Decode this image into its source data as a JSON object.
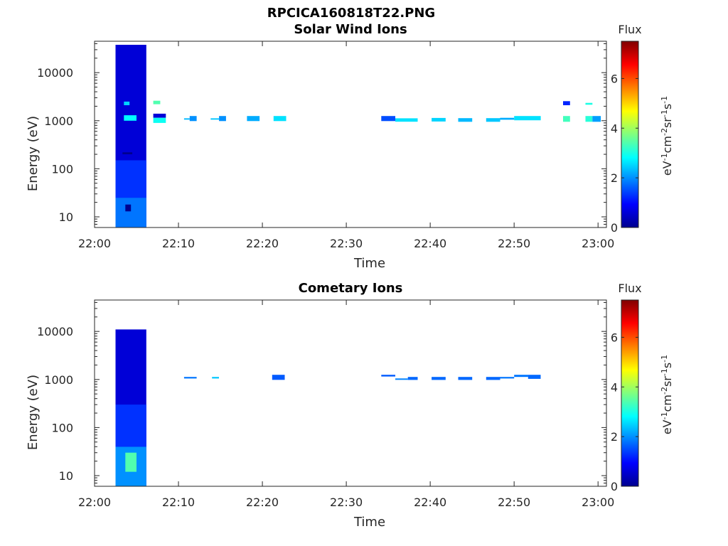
{
  "figure_title": "RPCICA160818T22.PNG",
  "colors": {
    "axis": "#262626",
    "background": "#ffffff",
    "colormap": "jet"
  },
  "chart_data": [
    {
      "type": "heatmap",
      "title": "Solar Wind Ions",
      "xlabel": "Time",
      "ylabel": "Energy (eV)",
      "yscale": "log",
      "xlim": [
        "22:00",
        "23:01"
      ],
      "ylim": [
        6,
        45000
      ],
      "xticks": [
        "22:00",
        "22:10",
        "22:20",
        "22:30",
        "22:40",
        "22:50",
        "23:00"
      ],
      "yticks": [
        "10",
        "100",
        "1000",
        "10000"
      ],
      "colorbar": {
        "label": "Flux",
        "units": "eV-1cm-2sr-1s-1",
        "ticks": [
          "0",
          "2",
          "4",
          "6"
        ],
        "range": [
          0,
          7.5
        ]
      },
      "bands": [
        {
          "start": "22:02:30",
          "end": "22:06:10",
          "emin": 6,
          "emax": 38000,
          "flux": 0.6
        },
        {
          "start": "22:02:30",
          "end": "22:06:10",
          "emin": 6,
          "emax": 25,
          "flux": 1.8
        },
        {
          "start": "22:02:30",
          "end": "22:06:10",
          "emin": 25,
          "emax": 150,
          "flux": 1.3
        },
        {
          "start": "22:03:40",
          "end": "22:04:20",
          "emin": 13,
          "emax": 18,
          "flux": 0.0
        },
        {
          "start": "22:03:30",
          "end": "22:05:00",
          "emin": 1000,
          "emax": 1300,
          "flux": 2.8
        },
        {
          "start": "22:03:30",
          "end": "22:04:10",
          "emin": 2100,
          "emax": 2500,
          "flux": 2.5
        },
        {
          "start": "22:03:20",
          "end": "22:04:30",
          "emin": 200,
          "emax": 220,
          "flux": 0.0
        },
        {
          "start": "22:07:00",
          "end": "22:08:30",
          "emin": 1150,
          "emax": 1400,
          "flux": 0.6
        },
        {
          "start": "22:07:00",
          "end": "22:08:30",
          "emin": 900,
          "emax": 1150,
          "flux": 2.9
        },
        {
          "start": "22:07:00",
          "end": "22:07:50",
          "emin": 2200,
          "emax": 2600,
          "flux": 3.4
        },
        {
          "start": "22:10:40",
          "end": "22:11:20",
          "emin": 1050,
          "emax": 1120,
          "flux": 2.3
        },
        {
          "start": "22:11:20",
          "end": "22:12:10",
          "emin": 980,
          "emax": 1250,
          "flux": 2.0
        },
        {
          "start": "22:13:50",
          "end": "22:14:50",
          "emin": 1050,
          "emax": 1120,
          "flux": 2.4
        },
        {
          "start": "22:14:50",
          "end": "22:15:40",
          "emin": 980,
          "emax": 1250,
          "flux": 2.0
        },
        {
          "start": "22:18:10",
          "end": "22:19:40",
          "emin": 980,
          "emax": 1250,
          "flux": 2.2
        },
        {
          "start": "22:21:20",
          "end": "22:22:50",
          "emin": 980,
          "emax": 1250,
          "flux": 2.6
        },
        {
          "start": "22:34:10",
          "end": "22:35:50",
          "emin": 980,
          "emax": 1250,
          "flux": 1.5
        },
        {
          "start": "22:35:50",
          "end": "22:38:30",
          "emin": 950,
          "emax": 1120,
          "flux": 2.6
        },
        {
          "start": "22:40:10",
          "end": "22:41:50",
          "emin": 960,
          "emax": 1140,
          "flux": 2.5
        },
        {
          "start": "22:43:20",
          "end": "22:45:00",
          "emin": 950,
          "emax": 1130,
          "flux": 2.3
        },
        {
          "start": "22:46:40",
          "end": "22:48:20",
          "emin": 950,
          "emax": 1130,
          "flux": 2.4
        },
        {
          "start": "22:48:20",
          "end": "22:50:00",
          "emin": 1050,
          "emax": 1150,
          "flux": 2.2
        },
        {
          "start": "22:50:00",
          "end": "22:53:10",
          "emin": 1020,
          "emax": 1250,
          "flux": 2.6
        },
        {
          "start": "22:55:50",
          "end": "22:56:40",
          "emin": 2100,
          "emax": 2550,
          "flux": 1.2
        },
        {
          "start": "22:55:50",
          "end": "22:56:40",
          "emin": 950,
          "emax": 1250,
          "flux": 3.3
        },
        {
          "start": "22:58:30",
          "end": "22:59:20",
          "emin": 2150,
          "emax": 2350,
          "flux": 3.0
        },
        {
          "start": "22:58:30",
          "end": "22:59:20",
          "emin": 950,
          "emax": 1250,
          "flux": 3.1
        },
        {
          "start": "22:59:20",
          "end": "23:00:20",
          "emin": 950,
          "emax": 1250,
          "flux": 2.1
        }
      ]
    },
    {
      "type": "heatmap",
      "title": "Cometary Ions",
      "xlabel": "Time",
      "ylabel": "Energy (eV)",
      "yscale": "log",
      "xlim": [
        "22:00",
        "23:01"
      ],
      "ylim": [
        6,
        45000
      ],
      "xticks": [
        "22:00",
        "22:10",
        "22:20",
        "22:30",
        "22:40",
        "22:50",
        "23:00"
      ],
      "yticks": [
        "10",
        "100",
        "1000",
        "10000"
      ],
      "colorbar": {
        "label": "Flux",
        "units": "eV-1cm-2sr-1s-1",
        "ticks": [
          "0",
          "2",
          "4",
          "6"
        ],
        "range": [
          0,
          7.5
        ]
      },
      "bands": [
        {
          "start": "22:02:30",
          "end": "22:06:10",
          "emin": 6,
          "emax": 11000,
          "flux": 0.6
        },
        {
          "start": "22:02:30",
          "end": "22:06:10",
          "emin": 6,
          "emax": 40,
          "flux": 2.0
        },
        {
          "start": "22:02:30",
          "end": "22:06:10",
          "emin": 40,
          "emax": 300,
          "flux": 1.3
        },
        {
          "start": "22:03:40",
          "end": "22:05:00",
          "emin": 12,
          "emax": 30,
          "flux": 3.4
        },
        {
          "start": "22:10:40",
          "end": "22:12:10",
          "emin": 1050,
          "emax": 1130,
          "flux": 1.8
        },
        {
          "start": "22:14:00",
          "end": "22:14:50",
          "emin": 1050,
          "emax": 1130,
          "flux": 2.4
        },
        {
          "start": "22:21:10",
          "end": "22:22:40",
          "emin": 980,
          "emax": 1250,
          "flux": 1.6
        },
        {
          "start": "22:34:10",
          "end": "22:35:50",
          "emin": 1150,
          "emax": 1250,
          "flux": 1.6
        },
        {
          "start": "22:35:50",
          "end": "22:37:20",
          "emin": 980,
          "emax": 1050,
          "flux": 1.9
        },
        {
          "start": "22:37:20",
          "end": "22:38:30",
          "emin": 980,
          "emax": 1130,
          "flux": 1.7
        },
        {
          "start": "22:40:10",
          "end": "22:41:50",
          "emin": 980,
          "emax": 1130,
          "flux": 1.7
        },
        {
          "start": "22:43:20",
          "end": "22:45:00",
          "emin": 980,
          "emax": 1130,
          "flux": 1.7
        },
        {
          "start": "22:46:40",
          "end": "22:48:20",
          "emin": 980,
          "emax": 1130,
          "flux": 1.7
        },
        {
          "start": "22:48:20",
          "end": "22:50:00",
          "emin": 1050,
          "emax": 1130,
          "flux": 1.8
        },
        {
          "start": "22:50:00",
          "end": "22:51:40",
          "emin": 1130,
          "emax": 1250,
          "flux": 1.8
        },
        {
          "start": "22:51:40",
          "end": "22:53:10",
          "emin": 1030,
          "emax": 1250,
          "flux": 1.7
        }
      ]
    }
  ]
}
